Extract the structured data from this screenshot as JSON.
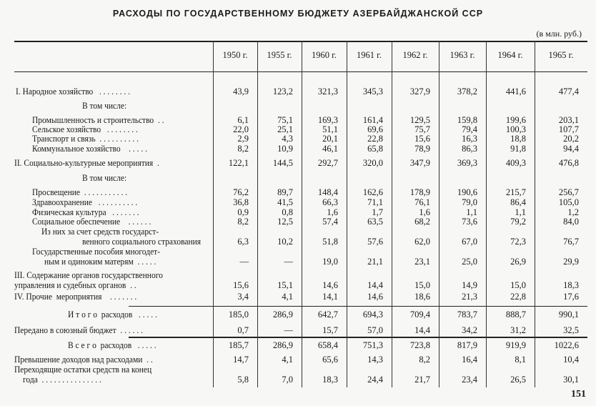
{
  "title": "РАСХОДЫ ПО ГОСУДАРСТВЕННОМУ БЮДЖЕТУ АЗЕРБАЙДЖАНСКОЙ ССР",
  "unit": "(в млн. руб.)",
  "columns": [
    "1950 г.",
    "1955 г.",
    "1960 г.",
    "1961 г.",
    "1962 г.",
    "1963 г.",
    "1964 г.",
    "1965 г."
  ],
  "rows": [
    {
      "label": [
        "I. Народное хозяйство   . . . . . . . ."
      ],
      "values": [
        "43,9",
        "123,2",
        "321,3",
        "345,3",
        "327,9",
        "378,2",
        "441,6",
        "477,4"
      ]
    },
    {
      "label": [
        "В том числе:"
      ]
    },
    {
      "label": [
        "Промышленность и строительство  . ."
      ],
      "values": [
        "6,1",
        "75,1",
        "169,3",
        "161,4",
        "129,5",
        "159,8",
        "199,6",
        "203,1"
      ]
    },
    {
      "label": [
        "Сельское хозяйство   . . . . . . . ."
      ],
      "values": [
        "22,0",
        "25,1",
        "51,1",
        "69,6",
        "75,7",
        "79,4",
        "100,3",
        "107,7"
      ]
    },
    {
      "label": [
        "Транспорт и связь  . . . . . . . . . ."
      ],
      "values": [
        "2,9",
        "4,3",
        "20,1",
        "22,8",
        "15,6",
        "16,3",
        "18,8",
        "20,2"
      ]
    },
    {
      "label": [
        "Коммунальное хозяйство    . . . . ."
      ],
      "values": [
        "8,2",
        "10,9",
        "46,1",
        "65,8",
        "78,9",
        "86,3",
        "91,8",
        "94,4"
      ]
    },
    {
      "label": [
        "II. Социально-культурные мероприятия  ."
      ],
      "values": [
        "122,1",
        "144,5",
        "292,7",
        "320,0",
        "347,9",
        "369,3",
        "409,3",
        "476,8"
      ]
    },
    {
      "label": [
        "В том числе:"
      ]
    },
    {
      "label": [
        "Просвещение  . . . . . . . . . . ."
      ],
      "values": [
        "76,2",
        "89,7",
        "148,4",
        "162,6",
        "178,9",
        "190,6",
        "215,7",
        "256,7"
      ]
    },
    {
      "label": [
        "Здравоохранение   . . . . . . . . . ."
      ],
      "values": [
        "36,8",
        "41,5",
        "66,3",
        "71,1",
        "76,1",
        "79,0",
        "86,4",
        "105,0"
      ]
    },
    {
      "label": [
        "Физическая культура   . . . . . . ."
      ],
      "values": [
        "0,9",
        "0,8",
        "1,6",
        "1,7",
        "1,6",
        "1,1",
        "1,1",
        "1,2"
      ]
    },
    {
      "label": [
        "Социальное обеспечение    . . . . . ."
      ],
      "values": [
        "8,2",
        "12,5",
        "57,4",
        "63,5",
        "68,2",
        "73,6",
        "79,2",
        "84,0"
      ]
    },
    {
      "label": [
        "Из них за счет средств государст-",
        "венного социального страхования"
      ],
      "values": [
        "6,3",
        "10,2",
        "51,8",
        "57,6",
        "62,0",
        "67,0",
        "72,3",
        "76,7"
      ]
    },
    {
      "label": [
        "Государственные пособия многодет-",
        "ным и одиноким матерям  . . . . ."
      ],
      "values": [
        "—",
        "—",
        "19,0",
        "21,1",
        "23,1",
        "25,0",
        "26,9",
        "29,9"
      ]
    },
    {
      "label": [
        "III. Содержание органов государственного",
        "управления и судебных органов  . ."
      ],
      "values": [
        "15,6",
        "15,1",
        "14,6",
        "14,4",
        "15,0",
        "14,9",
        "15,0",
        "18,3"
      ]
    },
    {
      "label": [
        "IV. Прочие  мероприятия    . . . . . . ."
      ],
      "values": [
        "3,4",
        "4,1",
        "14,1",
        "14,6",
        "18,6",
        "21,3",
        "22,8",
        "17,6"
      ]
    },
    {
      "label": [
        "И т о г о  расходов   . . . . ."
      ],
      "values": [
        "185,0",
        "286,9",
        "642,7",
        "694,3",
        "709,4",
        "783,7",
        "888,7",
        "990,1"
      ]
    },
    {
      "label": [
        "Передано в союзный бюджет  . . . . . ."
      ],
      "values": [
        "0,7",
        "—",
        "15,7",
        "57,0",
        "14,4",
        "34,2",
        "31,2",
        "32,5"
      ]
    },
    {
      "label": [
        "В с е г о  расходов   . . . . ."
      ],
      "values": [
        "185,7",
        "286,9",
        "658,4",
        "751,3",
        "723,8",
        "817,9",
        "919,9",
        "1022,6"
      ]
    },
    {
      "label": [
        "Превышение доходов над расходами  . ."
      ],
      "values": [
        "14,7",
        "4,1",
        "65,6",
        "14,3",
        "8,2",
        "16,4",
        "8,1",
        "10,4"
      ]
    },
    {
      "label": [
        "Переходящие остатки средств на конец",
        "года  . . . . . . . . . . . . . . ."
      ],
      "values": [
        "5,8",
        "7,0",
        "18,3",
        "24,4",
        "21,7",
        "23,4",
        "26,5",
        "30,1"
      ]
    }
  ],
  "page_number": "151"
}
